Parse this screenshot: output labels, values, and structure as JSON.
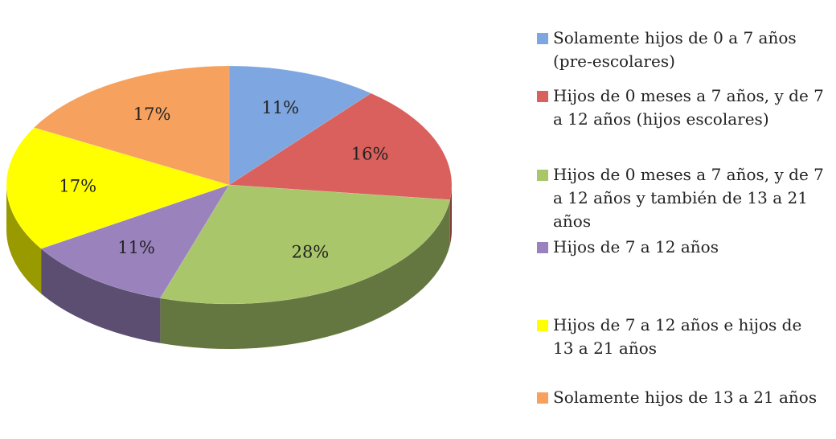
{
  "chart_data": {
    "type": "pie3d",
    "categories": [
      "Solamente hijos de 0 a 7 años (pre-escolares)",
      "Hijos de 0 meses a 7 años, y de 7 a 12 años (hijos escolares)",
      "Hijos de 0 meses a 7 años, y de 7 a 12 años y también de 13 a 21 años",
      "Hijos de 7 a 12 años",
      "Hijos de 7 a 12 años e hijos de 13 a 21 años",
      "Solamente hijos de 13 a 21 años"
    ],
    "values": [
      11,
      16,
      28,
      11,
      17,
      17
    ],
    "value_labels": [
      "11%",
      "16%",
      "28%",
      "11%",
      "17%",
      "17%"
    ],
    "colors": [
      "#7ea6e0",
      "#d9605c",
      "#a9c66a",
      "#9a82bd",
      "#ffff00",
      "#f7a15e"
    ],
    "legend": "right"
  }
}
